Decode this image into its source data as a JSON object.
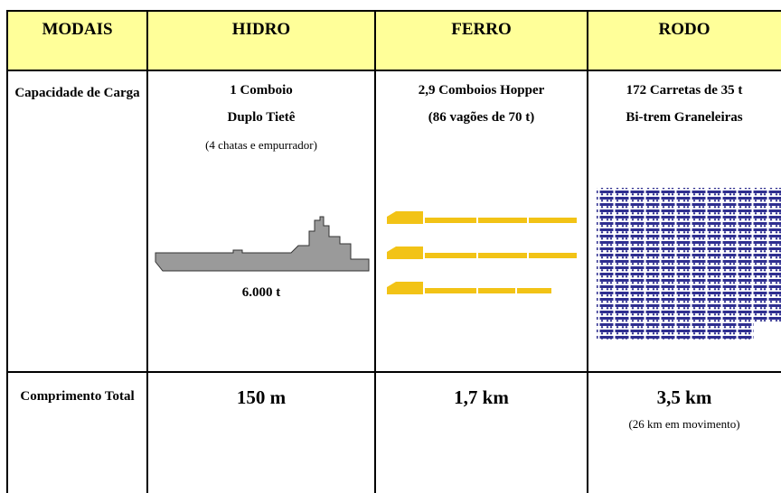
{
  "header": [
    "MODAIS",
    "HIDRO",
    "FERRO",
    "RODO"
  ],
  "rows": [
    {
      "label": "Capacidade de Carga",
      "hidro": [
        "1 Comboio",
        "Duplo Tietê",
        "(4 chatas e empurrador)",
        "6.000 t"
      ],
      "ferro": [
        "2,9 Comboios Hopper",
        "(86 vagões de 70 t)"
      ],
      "rodo": [
        "172 Carretas de 35 t",
        "Bi-trem Graneleiras"
      ]
    },
    {
      "label": "Comprimento Total",
      "hidro": [
        "150 m"
      ],
      "ferro": [
        "1,7 km"
      ],
      "rodo": [
        "3,5 km",
        "(26 km em movimento)"
      ]
    }
  ]
}
